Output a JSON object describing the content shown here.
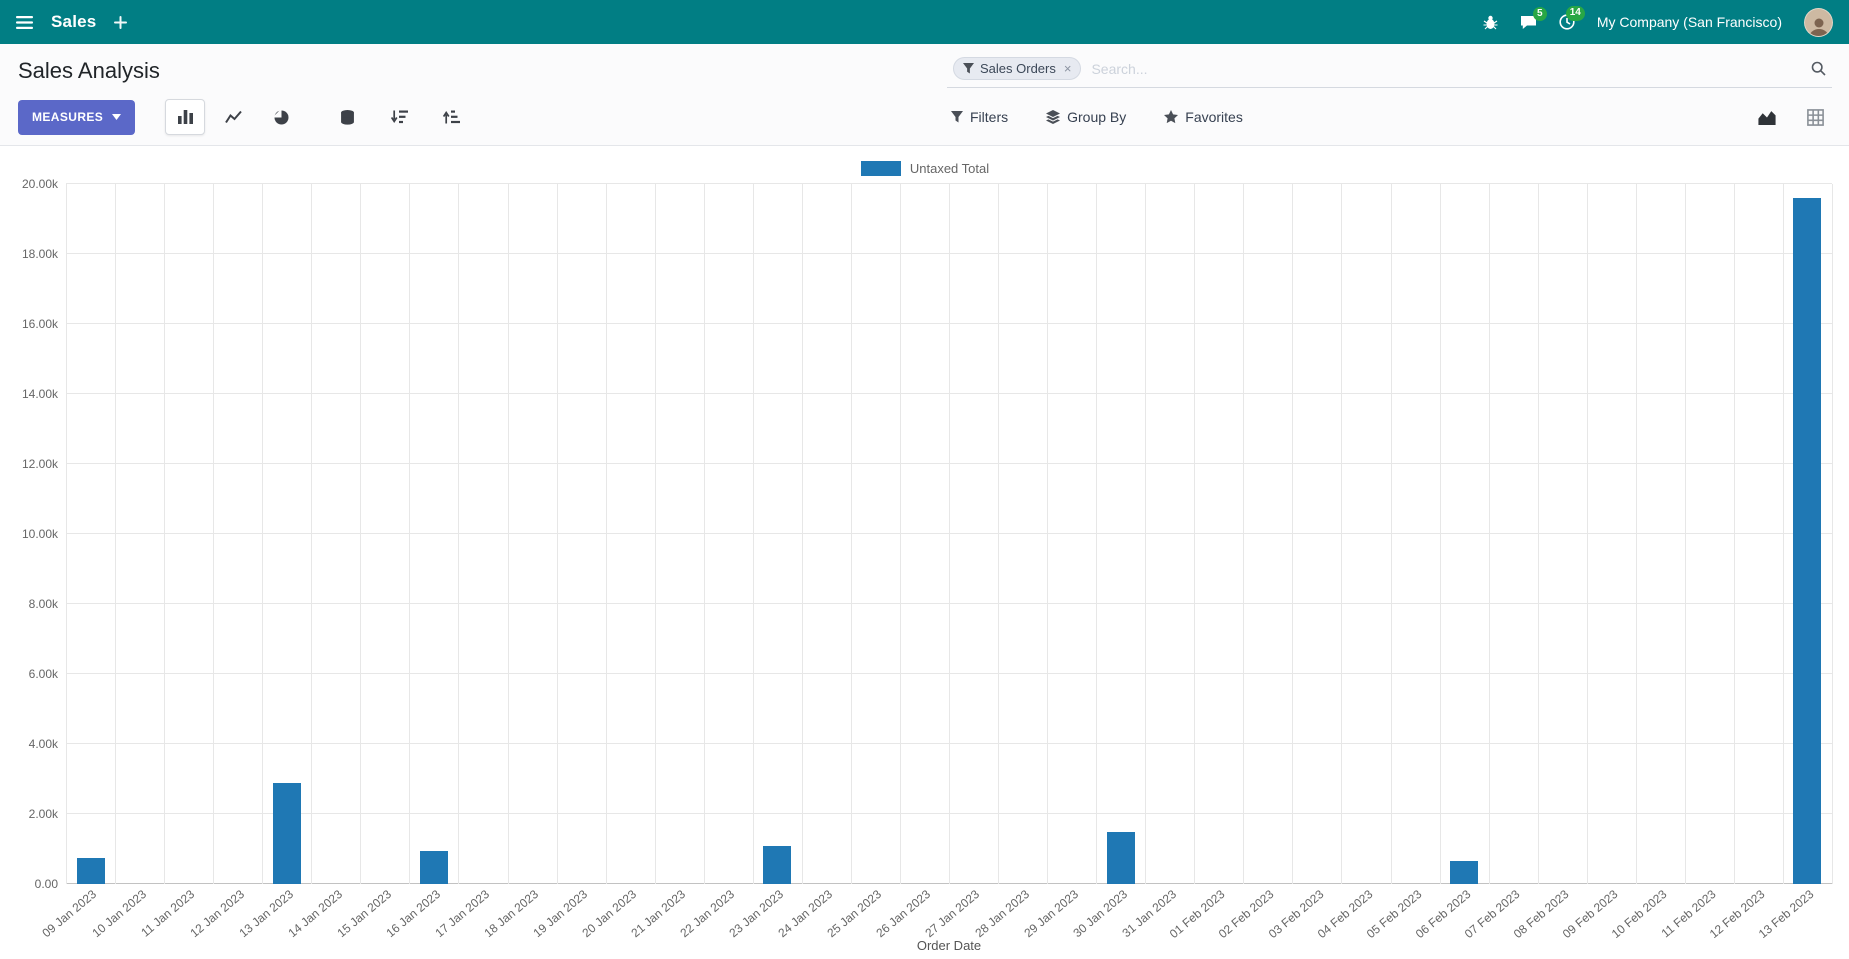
{
  "navbar": {
    "app_name": "Sales",
    "company": "My Company (San Francisco)",
    "message_badge": "5",
    "activity_badge": "14"
  },
  "control_panel": {
    "title": "Sales Analysis",
    "search": {
      "facet_label": "Sales Orders",
      "facet_remove": "×",
      "placeholder": "Search..."
    },
    "measures_label": "MEASURES",
    "filters_label": "Filters",
    "groupby_label": "Group By",
    "favorites_label": "Favorites"
  },
  "icons": {
    "menu-icon": "hamburger",
    "plus-icon": "plus",
    "bug-icon": "bug",
    "messages-icon": "speech-bubble",
    "activities-icon": "clock",
    "search-icon": "magnifier",
    "filter-icon": "funnel",
    "groupby-icon": "layers",
    "favorites-icon": "star",
    "bar-chart-icon": "bars",
    "line-chart-icon": "line",
    "pie-chart-icon": "pie",
    "stacked-icon": "database",
    "sort-desc-icon": "descending-bars",
    "sort-asc-icon": "ascending-bars",
    "graph-view-icon": "area-chart",
    "pivot-view-icon": "grid"
  },
  "colors": {
    "navbar-bg": "#017e84",
    "accent": "#5b68c8",
    "bar-color": "#1f78b4",
    "badge-bg": "#28a745"
  },
  "chart_data": {
    "type": "bar",
    "title": "",
    "legend": "Untaxed Total",
    "legend_position": "top",
    "xlabel": "Order Date",
    "ylabel": "",
    "grid": true,
    "ylim": [
      0,
      20000
    ],
    "ytick_step": 2000,
    "ytick_labels": [
      "0.00",
      "2.00k",
      "4.00k",
      "6.00k",
      "8.00k",
      "10.00k",
      "12.00k",
      "14.00k",
      "16.00k",
      "18.00k",
      "20.00k"
    ],
    "bar_color": "#1f78b4",
    "categories": [
      "09 Jan 2023",
      "10 Jan 2023",
      "11 Jan 2023",
      "12 Jan 2023",
      "13 Jan 2023",
      "14 Jan 2023",
      "15 Jan 2023",
      "16 Jan 2023",
      "17 Jan 2023",
      "18 Jan 2023",
      "19 Jan 2023",
      "20 Jan 2023",
      "21 Jan 2023",
      "22 Jan 2023",
      "23 Jan 2023",
      "24 Jan 2023",
      "25 Jan 2023",
      "26 Jan 2023",
      "27 Jan 2023",
      "28 Jan 2023",
      "29 Jan 2023",
      "30 Jan 2023",
      "31 Jan 2023",
      "01 Feb 2023",
      "02 Feb 2023",
      "03 Feb 2023",
      "04 Feb 2023",
      "05 Feb 2023",
      "06 Feb 2023",
      "07 Feb 2023",
      "08 Feb 2023",
      "09 Feb 2023",
      "10 Feb 2023",
      "11 Feb 2023",
      "12 Feb 2023",
      "13 Feb 2023"
    ],
    "values": [
      750,
      0,
      0,
      0,
      2900,
      0,
      0,
      950,
      0,
      0,
      0,
      0,
      0,
      0,
      1100,
      0,
      0,
      0,
      0,
      0,
      0,
      1500,
      0,
      0,
      0,
      0,
      0,
      0,
      650,
      0,
      0,
      0,
      0,
      0,
      0,
      19600
    ]
  }
}
